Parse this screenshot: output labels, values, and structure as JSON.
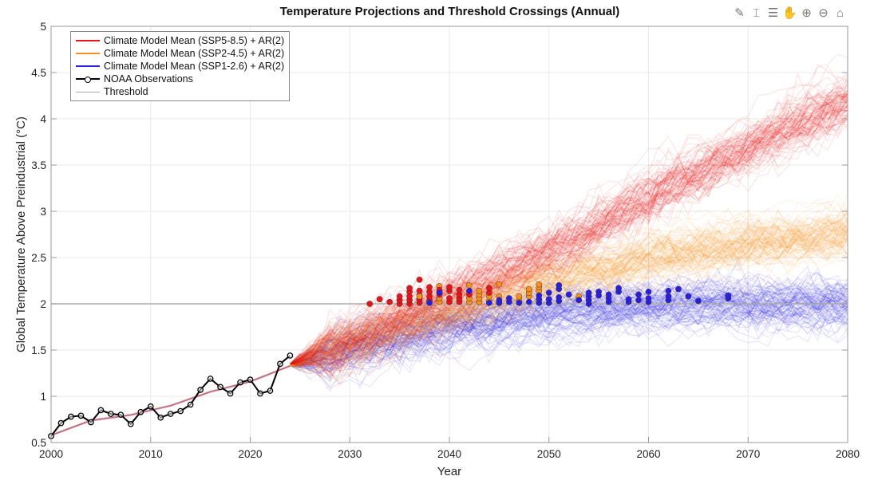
{
  "toolbar": {
    "icons": [
      "export-icon",
      "brush-icon",
      "legend-icon",
      "pan-icon",
      "zoom-in-icon",
      "zoom-out-icon",
      "home-icon"
    ],
    "glyphs": [
      "✎",
      "⌶",
      "☰",
      "✋",
      "⊕",
      "⊖",
      "⌂"
    ]
  },
  "chart_data": {
    "type": "line",
    "title": "Temperature Projections and Threshold Crossings (Annual)",
    "xlabel": "Year",
    "ylabel": "Global Temperature Above Preindustrial (°C)",
    "xlim": [
      2000,
      2080
    ],
    "ylim": [
      0.5,
      5
    ],
    "xticks": [
      2000,
      2010,
      2020,
      2030,
      2040,
      2050,
      2060,
      2070,
      2080
    ],
    "yticks": [
      0.5,
      1,
      1.5,
      2,
      2.5,
      3,
      3.5,
      4,
      4.5,
      5
    ],
    "ytick_labels": [
      "0.5",
      "1",
      "1.5",
      "2",
      "2.5",
      "3",
      "3.5",
      "4",
      "4.5",
      "5"
    ],
    "grid": true,
    "legend_position": "top-left",
    "legend": [
      {
        "label": "Climate Model Mean (SSP5-8.5) + AR(2)",
        "color": "#e8141b"
      },
      {
        "label": "Climate Model Mean (SSP2-4.5) + AR(2)",
        "color": "#f7901e"
      },
      {
        "label": "Climate Model Mean (SSP1-2.6) + AR(2)",
        "color": "#2a1fe0"
      },
      {
        "label": "NOAA Observations",
        "color": "#000000"
      },
      {
        "label": "Threshold",
        "color": "#aaaaaa"
      }
    ],
    "threshold": 2.0,
    "observations": {
      "x": [
        2000,
        2001,
        2002,
        2003,
        2004,
        2005,
        2006,
        2007,
        2008,
        2009,
        2010,
        2011,
        2012,
        2013,
        2014,
        2015,
        2016,
        2017,
        2018,
        2019,
        2020,
        2021,
        2022,
        2023,
        2024
      ],
      "y": [
        0.57,
        0.71,
        0.78,
        0.79,
        0.72,
        0.85,
        0.81,
        0.8,
        0.7,
        0.83,
        0.89,
        0.77,
        0.81,
        0.84,
        0.91,
        1.07,
        1.19,
        1.1,
        1.03,
        1.15,
        1.18,
        1.03,
        1.06,
        1.35,
        1.44
      ]
    },
    "historical_mean": {
      "x": [
        2000,
        2004,
        2008,
        2012,
        2016,
        2020,
        2024
      ],
      "y": [
        0.58,
        0.74,
        0.8,
        0.9,
        1.05,
        1.16,
        1.33
      ]
    },
    "series": [
      {
        "name": "SSP5-8.5",
        "color": "#e8141b",
        "members": 100,
        "mean": {
          "x": [
            2024,
            2030,
            2040,
            2050,
            2060,
            2070,
            2080
          ],
          "y": [
            1.35,
            1.6,
            2.05,
            2.55,
            3.15,
            3.7,
            4.2
          ]
        },
        "spread": 0.15
      },
      {
        "name": "SSP2-4.5",
        "color": "#f7901e",
        "members": 100,
        "mean": {
          "x": [
            2024,
            2030,
            2040,
            2050,
            2060,
            2070,
            2080
          ],
          "y": [
            1.33,
            1.55,
            1.9,
            2.25,
            2.5,
            2.65,
            2.75
          ]
        },
        "spread": 0.14
      },
      {
        "name": "SSP1-2.6",
        "color": "#2a1fe0",
        "members": 100,
        "mean": {
          "x": [
            2024,
            2030,
            2040,
            2050,
            2060,
            2070,
            2080
          ],
          "y": [
            1.33,
            1.5,
            1.75,
            1.9,
            1.97,
            2.0,
            1.98
          ]
        },
        "spread": 0.14
      }
    ],
    "crossings": [
      {
        "scenario": "SSP5-8.5",
        "color": "#e8141b",
        "x": 2032,
        "y": [
          2.0
        ]
      },
      {
        "scenario": "SSP5-8.5",
        "color": "#e8141b",
        "x": 2033,
        "y": [
          2.05
        ]
      },
      {
        "scenario": "SSP5-8.5",
        "color": "#e8141b",
        "x": 2034,
        "y": [
          2.02
        ]
      },
      {
        "scenario": "SSP5-8.5",
        "color": "#e8141b",
        "x": 2035,
        "y": [
          2.0,
          2.04,
          2.08
        ]
      },
      {
        "scenario": "SSP5-8.5",
        "color": "#e8141b",
        "x": 2036,
        "y": [
          2.0,
          2.04,
          2.08,
          2.13,
          2.17
        ]
      },
      {
        "scenario": "SSP5-8.5",
        "color": "#e8141b",
        "x": 2037,
        "y": [
          2.01,
          2.05,
          2.09,
          2.14,
          2.26
        ]
      },
      {
        "scenario": "SSP2-4.5",
        "color": "#f7901e",
        "x": 2037,
        "y": [
          2.08
        ]
      },
      {
        "scenario": "SSP5-8.5",
        "color": "#e8141b",
        "x": 2038,
        "y": [
          2.04,
          2.08,
          2.13,
          2.18
        ]
      },
      {
        "scenario": "SSP1-2.6",
        "color": "#2a1fe0",
        "x": 2038,
        "y": [
          2.01
        ]
      },
      {
        "scenario": "SSP2-4.5",
        "color": "#f7901e",
        "x": 2039,
        "y": [
          2.02,
          2.06,
          2.19
        ]
      },
      {
        "scenario": "SSP5-8.5",
        "color": "#e8141b",
        "x": 2039,
        "y": [
          2.1,
          2.15
        ]
      },
      {
        "scenario": "SSP1-2.6",
        "color": "#2a1fe0",
        "x": 2039,
        "y": [
          2.12
        ]
      },
      {
        "scenario": "SSP5-8.5",
        "color": "#e8141b",
        "x": 2040,
        "y": [
          2.02,
          2.06,
          2.14,
          2.18
        ]
      },
      {
        "scenario": "SSP5-8.5",
        "color": "#e8141b",
        "x": 2041,
        "y": [
          2.02,
          2.06,
          2.1,
          2.15
        ]
      },
      {
        "scenario": "SSP2-4.5",
        "color": "#f7901e",
        "x": 2042,
        "y": [
          2.02,
          2.06,
          2.2
        ]
      },
      {
        "scenario": "SSP5-8.5",
        "color": "#e8141b",
        "x": 2042,
        "y": [
          2.1
        ]
      },
      {
        "scenario": "SSP1-2.6",
        "color": "#2a1fe0",
        "x": 2042,
        "y": [
          2.14
        ]
      },
      {
        "scenario": "SSP2-4.5",
        "color": "#f7901e",
        "x": 2043,
        "y": [
          2.02,
          2.06,
          2.1,
          2.14
        ]
      },
      {
        "scenario": "SSP2-4.5",
        "color": "#f7901e",
        "x": 2044,
        "y": [
          2.03,
          2.08
        ]
      },
      {
        "scenario": "SSP5-8.5",
        "color": "#e8141b",
        "x": 2044,
        "y": [
          2.12,
          2.17
        ]
      },
      {
        "scenario": "SSP1-2.6",
        "color": "#2a1fe0",
        "x": 2044,
        "y": [
          2.01
        ]
      },
      {
        "scenario": "SSP2-4.5",
        "color": "#f7901e",
        "x": 2045,
        "y": [
          2.08,
          2.21
        ]
      },
      {
        "scenario": "SSP1-2.6",
        "color": "#2a1fe0",
        "x": 2045,
        "y": [
          2.01,
          2.04
        ]
      },
      {
        "scenario": "SSP1-2.6",
        "color": "#2a1fe0",
        "x": 2046,
        "y": [
          2.02,
          2.06
        ]
      },
      {
        "scenario": "SSP2-4.5",
        "color": "#f7901e",
        "x": 2047,
        "y": [
          2.04,
          2.08
        ]
      },
      {
        "scenario": "SSP1-2.6",
        "color": "#2a1fe0",
        "x": 2047,
        "y": [
          2.01
        ]
      },
      {
        "scenario": "SSP2-4.5",
        "color": "#f7901e",
        "x": 2048,
        "y": [
          2.08,
          2.12,
          2.16
        ]
      },
      {
        "scenario": "SSP1-2.6",
        "color": "#2a1fe0",
        "x": 2048,
        "y": [
          2.02
        ]
      },
      {
        "scenario": "SSP2-4.5",
        "color": "#f7901e",
        "x": 2049,
        "y": [
          2.14,
          2.18,
          2.21
        ]
      },
      {
        "scenario": "SSP1-2.6",
        "color": "#2a1fe0",
        "x": 2049,
        "y": [
          2.01,
          2.05,
          2.09
        ]
      },
      {
        "scenario": "SSP1-2.6",
        "color": "#2a1fe0",
        "x": 2050,
        "y": [
          2.01,
          2.05,
          2.12
        ]
      },
      {
        "scenario": "SSP1-2.6",
        "color": "#2a1fe0",
        "x": 2051,
        "y": [
          2.03,
          2.07,
          2.16,
          2.2
        ]
      },
      {
        "scenario": "SSP1-2.6",
        "color": "#2a1fe0",
        "x": 2052,
        "y": [
          2.1
        ]
      },
      {
        "scenario": "SSP2-4.5",
        "color": "#f7901e",
        "x": 2053,
        "y": [
          2.08
        ]
      },
      {
        "scenario": "SSP1-2.6",
        "color": "#2a1fe0",
        "x": 2053,
        "y": [
          2.04
        ]
      },
      {
        "scenario": "SSP1-2.6",
        "color": "#2a1fe0",
        "x": 2054,
        "y": [
          2.0,
          2.04,
          2.08,
          2.12
        ]
      },
      {
        "scenario": "SSP1-2.6",
        "color": "#2a1fe0",
        "x": 2055,
        "y": [
          2.09,
          2.13
        ]
      },
      {
        "scenario": "SSP1-2.6",
        "color": "#2a1fe0",
        "x": 2056,
        "y": [
          2.02,
          2.06,
          2.1
        ]
      },
      {
        "scenario": "SSP1-2.6",
        "color": "#2a1fe0",
        "x": 2057,
        "y": [
          2.13,
          2.17
        ]
      },
      {
        "scenario": "SSP1-2.6",
        "color": "#2a1fe0",
        "x": 2058,
        "y": [
          2.02,
          2.05
        ]
      },
      {
        "scenario": "SSP1-2.6",
        "color": "#2a1fe0",
        "x": 2059,
        "y": [
          2.04,
          2.1
        ]
      },
      {
        "scenario": "SSP1-2.6",
        "color": "#2a1fe0",
        "x": 2060,
        "y": [
          2.02,
          2.06,
          2.13
        ]
      },
      {
        "scenario": "SSP1-2.6",
        "color": "#2a1fe0",
        "x": 2062,
        "y": [
          2.04,
          2.08,
          2.14
        ]
      },
      {
        "scenario": "SSP1-2.6",
        "color": "#2a1fe0",
        "x": 2063,
        "y": [
          2.16
        ]
      },
      {
        "scenario": "SSP1-2.6",
        "color": "#2a1fe0",
        "x": 2064,
        "y": [
          2.08
        ]
      },
      {
        "scenario": "SSP1-2.6",
        "color": "#2a1fe0",
        "x": 2065,
        "y": [
          2.03
        ]
      },
      {
        "scenario": "SSP1-2.6",
        "color": "#2a1fe0",
        "x": 2068,
        "y": [
          2.06,
          2.09
        ]
      }
    ]
  }
}
